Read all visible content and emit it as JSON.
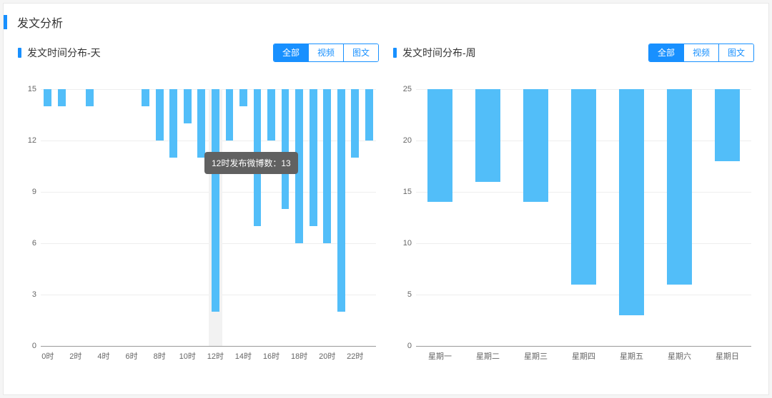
{
  "colors": {
    "accent": "#1890ff",
    "bar": "#52bef9",
    "grid": "#eeeeee",
    "axis": "#999999",
    "text": "#666666",
    "tooltip_bg": "#616161",
    "card_bg": "#ffffff",
    "highlight_col": "#f2f2f2"
  },
  "main_title": "发文分析",
  "tooltip_text": "12时发布微博数：13",
  "tooltip_hour_index": 12,
  "buttons": {
    "all": "全部",
    "video": "视频",
    "image": "图文"
  },
  "day_chart": {
    "title": "发文时间分布-天",
    "type": "bar",
    "ylim": [
      0,
      15
    ],
    "yticks": [
      0,
      3,
      6,
      9,
      12,
      15
    ],
    "x_label_step": 2,
    "x_suffix": "时",
    "categories": [
      "0",
      "1",
      "2",
      "3",
      "4",
      "5",
      "6",
      "7",
      "8",
      "9",
      "10",
      "11",
      "12",
      "13",
      "14",
      "15",
      "16",
      "17",
      "18",
      "19",
      "20",
      "21",
      "22",
      "23"
    ],
    "values": [
      1,
      1,
      0,
      1,
      0,
      0,
      0,
      1,
      3,
      4,
      2,
      4,
      13,
      3,
      1,
      8,
      3,
      7,
      9,
      8,
      9,
      13,
      4,
      3
    ]
  },
  "week_chart": {
    "title": "发文时间分布-周",
    "type": "bar",
    "ylim": [
      0,
      25
    ],
    "yticks": [
      0,
      5,
      10,
      15,
      20,
      25
    ],
    "x_label_step": 1,
    "x_suffix": "",
    "categories": [
      "星期一",
      "星期二",
      "星期三",
      "星期四",
      "星期五",
      "星期六",
      "星期日"
    ],
    "values": [
      11,
      9,
      11,
      19,
      22,
      19,
      7
    ]
  }
}
